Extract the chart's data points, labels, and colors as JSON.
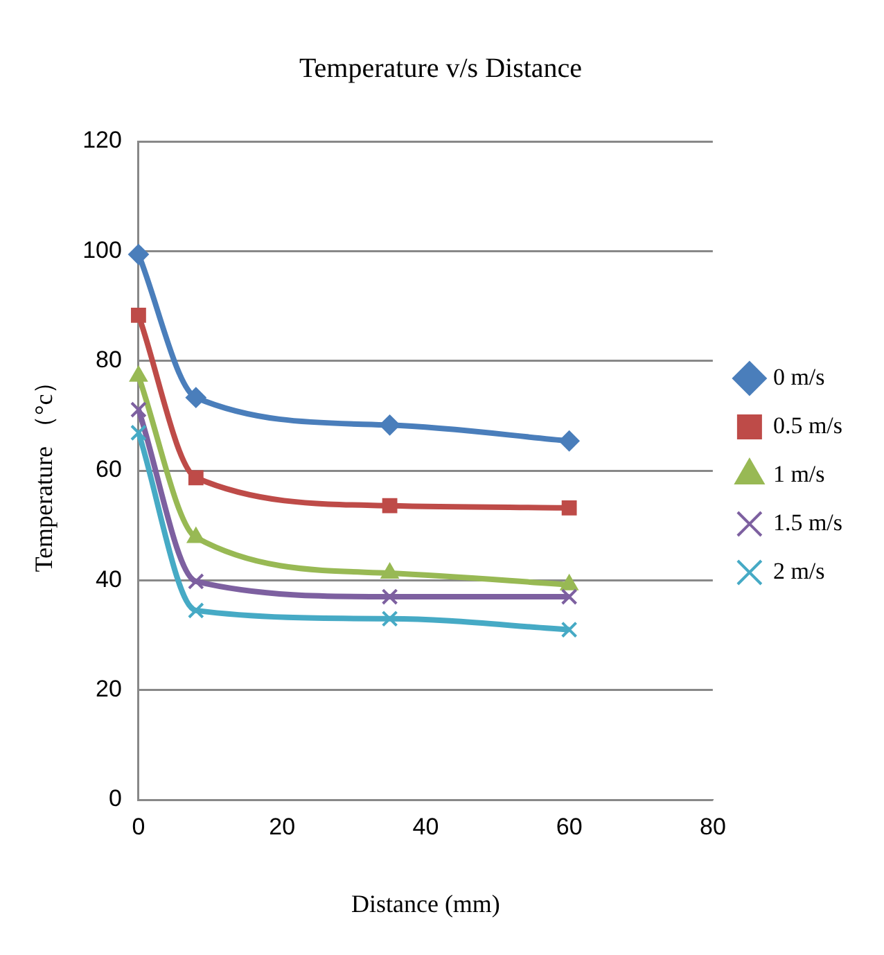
{
  "chart_data": {
    "type": "line",
    "title": "Temperature v/s Distance",
    "xlabel": "Distance (mm)",
    "ylabel": "Temperature （°c）",
    "x": [
      0,
      8,
      35,
      60
    ],
    "xlim": [
      0,
      80
    ],
    "xticks": [
      0,
      20,
      40,
      60,
      80
    ],
    "ylim": [
      0,
      120
    ],
    "yticks": [
      0,
      20,
      40,
      60,
      80,
      100,
      120
    ],
    "grid": "y",
    "legend": "right",
    "series": [
      {
        "name": "0 m/s",
        "color": "#4a7ebb",
        "marker": "diamond",
        "values": [
          99.4,
          73.3,
          68.3,
          65.4
        ]
      },
      {
        "name": "0.5 m/s",
        "color": "#be4b48",
        "marker": "square",
        "values": [
          88.3,
          58.7,
          53.6,
          53.2
        ]
      },
      {
        "name": "1 m/s",
        "color": "#98b954",
        "marker": "triangle",
        "values": [
          77.2,
          47.8,
          41.3,
          39.2
        ]
      },
      {
        "name": "1.5 m/s",
        "color": "#7d60a0",
        "marker": "cross",
        "values": [
          71.1,
          39.8,
          37.0,
          37.0
        ]
      },
      {
        "name": "2 m/s",
        "color": "#46aac5",
        "marker": "cross",
        "values": [
          66.9,
          34.5,
          33.0,
          31.0
        ]
      }
    ]
  }
}
